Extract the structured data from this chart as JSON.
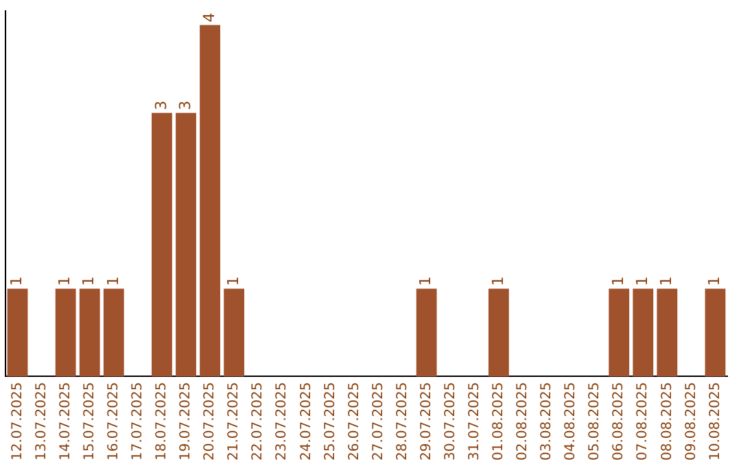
{
  "chart_data": {
    "type": "bar",
    "categories": [
      "12.07.2025",
      "13.07.2025",
      "14.07.2025",
      "15.07.2025",
      "16.07.2025",
      "17.07.2025",
      "18.07.2025",
      "19.07.2025",
      "20.07.2025",
      "21.07.2025",
      "22.07.2025",
      "23.07.2025",
      "24.07.2025",
      "25.07.2025",
      "26.07.2025",
      "27.07.2025",
      "28.07.2025",
      "29.07.2025",
      "30.07.2025",
      "31.07.2025",
      "01.08.2025",
      "02.08.2025",
      "03.08.2025",
      "04.08.2025",
      "05.08.2025",
      "06.08.2025",
      "07.08.2025",
      "08.08.2025",
      "09.08.2025",
      "10.08.2025"
    ],
    "values": [
      1,
      0,
      1,
      1,
      1,
      0,
      3,
      3,
      4,
      1,
      0,
      0,
      0,
      0,
      0,
      0,
      0,
      1,
      0,
      0,
      1,
      0,
      0,
      0,
      0,
      1,
      1,
      1,
      0,
      1
    ],
    "value_labels": [
      "1",
      null,
      "1",
      "1",
      "1",
      null,
      "3",
      "3",
      "4",
      "1",
      null,
      null,
      null,
      null,
      null,
      null,
      null,
      "1",
      null,
      null,
      "1",
      null,
      null,
      null,
      null,
      "1",
      "1",
      "1",
      null,
      "1"
    ],
    "color": "#a0522d",
    "grid": false,
    "legend": false,
    "tick_labels": "x"
  }
}
